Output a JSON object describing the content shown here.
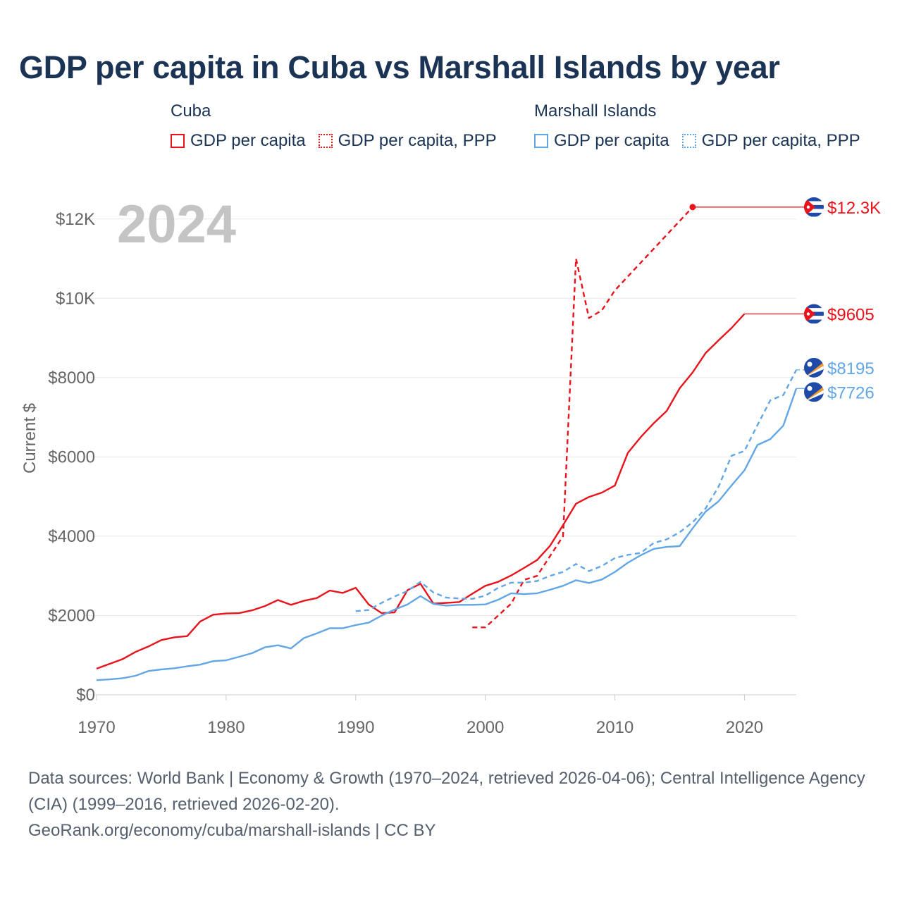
{
  "title": "GDP per capita in Cuba vs Marshall Islands by year",
  "legend": {
    "cuba": {
      "group": "Cuba",
      "items": [
        {
          "label": "GDP per capita",
          "style": "solid"
        },
        {
          "label": "GDP per capita, PPP",
          "style": "dotted"
        }
      ]
    },
    "mhl": {
      "group": "Marshall Islands",
      "items": [
        {
          "label": "GDP per capita",
          "style": "solid"
        },
        {
          "label": "GDP per capita, PPP",
          "style": "dotted"
        }
      ]
    }
  },
  "colors": {
    "cuba": "#e8131b",
    "mhl": "#62a6e6",
    "grid": "#e8e8e8",
    "axis_text": "#666666",
    "watermark": "#c4c4c4"
  },
  "year_label": "2024",
  "source": {
    "line1": "Data sources: World Bank | Economy & Growth (1970–2024, retrieved 2026-04-06); Central Intelligence Agency (CIA) (1999–2016, retrieved 2026-02-20).",
    "line2": "GeoRank.org/economy/cuba/marshall-islands | CC BY"
  },
  "chart_data": {
    "type": "line",
    "title": "GDP per capita in Cuba vs Marshall Islands by year",
    "xlabel": "",
    "ylabel": "Current $",
    "xlim": [
      1970,
      2024
    ],
    "ylim": [
      0,
      13000
    ],
    "x_ticks": [
      1970,
      1980,
      1990,
      2000,
      2010,
      2020
    ],
    "y_ticks": [
      0,
      2000,
      4000,
      6000,
      8000,
      10000,
      12000
    ],
    "y_tick_labels": [
      "$0",
      "$2000",
      "$4000",
      "$6000",
      "$8000",
      "$10K",
      "$12K"
    ],
    "grid": true,
    "series": [
      {
        "name": "Cuba GDP per capita",
        "country": "cuba",
        "dash": false,
        "end_label": "$9605",
        "x": [
          1970,
          1971,
          1972,
          1973,
          1974,
          1975,
          1976,
          1977,
          1978,
          1979,
          1980,
          1981,
          1982,
          1983,
          1984,
          1985,
          1986,
          1987,
          1988,
          1989,
          1990,
          1991,
          1992,
          1993,
          1994,
          1995,
          1996,
          1997,
          1998,
          1999,
          2000,
          2001,
          2002,
          2003,
          2004,
          2005,
          2006,
          2007,
          2008,
          2009,
          2010,
          2011,
          2012,
          2013,
          2014,
          2015,
          2016,
          2017,
          2018,
          2019,
          2020
        ],
        "values": [
          660,
          780,
          900,
          1080,
          1220,
          1380,
          1450,
          1480,
          1850,
          2020,
          2050,
          2060,
          2130,
          2240,
          2390,
          2270,
          2370,
          2440,
          2630,
          2570,
          2700,
          2280,
          2060,
          2080,
          2640,
          2800,
          2300,
          2320,
          2340,
          2550,
          2750,
          2850,
          3010,
          3200,
          3400,
          3760,
          4280,
          4820,
          4990,
          5100,
          5280,
          6100,
          6500,
          6850,
          7160,
          7730,
          8130,
          8620,
          8940,
          9250,
          9605
        ],
        "extend_to": 2024
      },
      {
        "name": "Cuba GDP per capita, PPP",
        "country": "cuba",
        "dash": true,
        "end_label": "$12.3K",
        "x": [
          1999,
          2000,
          2002,
          2003,
          2004,
          2006,
          2007,
          2008,
          2009,
          2010,
          2016
        ],
        "values": [
          1700,
          1700,
          2300,
          2900,
          3000,
          4000,
          11000,
          9500,
          9700,
          10200,
          12300
        ],
        "extend_to": 2024
      },
      {
        "name": "Marshall Islands GDP per capita",
        "country": "mhl",
        "dash": false,
        "end_label": "$7726",
        "x": [
          1970,
          1971,
          1972,
          1973,
          1974,
          1975,
          1976,
          1977,
          1978,
          1979,
          1980,
          1981,
          1982,
          1983,
          1984,
          1985,
          1986,
          1987,
          1988,
          1989,
          1990,
          1991,
          1992,
          1993,
          1994,
          1995,
          1996,
          1997,
          1998,
          1999,
          2000,
          2001,
          2002,
          2003,
          2004,
          2005,
          2006,
          2007,
          2008,
          2009,
          2010,
          2011,
          2012,
          2013,
          2014,
          2015,
          2016,
          2017,
          2018,
          2019,
          2020,
          2021,
          2022,
          2023,
          2024
        ],
        "values": [
          370,
          390,
          420,
          480,
          600,
          640,
          670,
          720,
          760,
          850,
          870,
          960,
          1050,
          1200,
          1250,
          1170,
          1430,
          1550,
          1680,
          1680,
          1760,
          1820,
          2000,
          2150,
          2280,
          2490,
          2290,
          2250,
          2270,
          2270,
          2280,
          2400,
          2560,
          2540,
          2560,
          2650,
          2750,
          2890,
          2820,
          2910,
          3100,
          3330,
          3520,
          3680,
          3730,
          3750,
          4200,
          4620,
          4880,
          5280,
          5660,
          6300,
          6450,
          6790,
          7726
        ]
      },
      {
        "name": "Marshall Islands GDP per capita, PPP",
        "country": "mhl",
        "dash": true,
        "end_label": "$8195",
        "x": [
          1990,
          1991,
          1992,
          1993,
          1994,
          1995,
          1996,
          1997,
          1998,
          1999,
          2000,
          2001,
          2002,
          2003,
          2004,
          2005,
          2006,
          2007,
          2008,
          2009,
          2010,
          2011,
          2012,
          2013,
          2014,
          2015,
          2016,
          2017,
          2018,
          2019,
          2020,
          2021,
          2022,
          2023,
          2024
        ],
        "values": [
          2110,
          2140,
          2320,
          2480,
          2620,
          2850,
          2580,
          2450,
          2430,
          2420,
          2500,
          2700,
          2830,
          2830,
          2870,
          3000,
          3100,
          3300,
          3120,
          3250,
          3450,
          3530,
          3580,
          3830,
          3920,
          4100,
          4350,
          4700,
          5250,
          6030,
          6150,
          6800,
          7430,
          7560,
          8195
        ]
      }
    ]
  }
}
